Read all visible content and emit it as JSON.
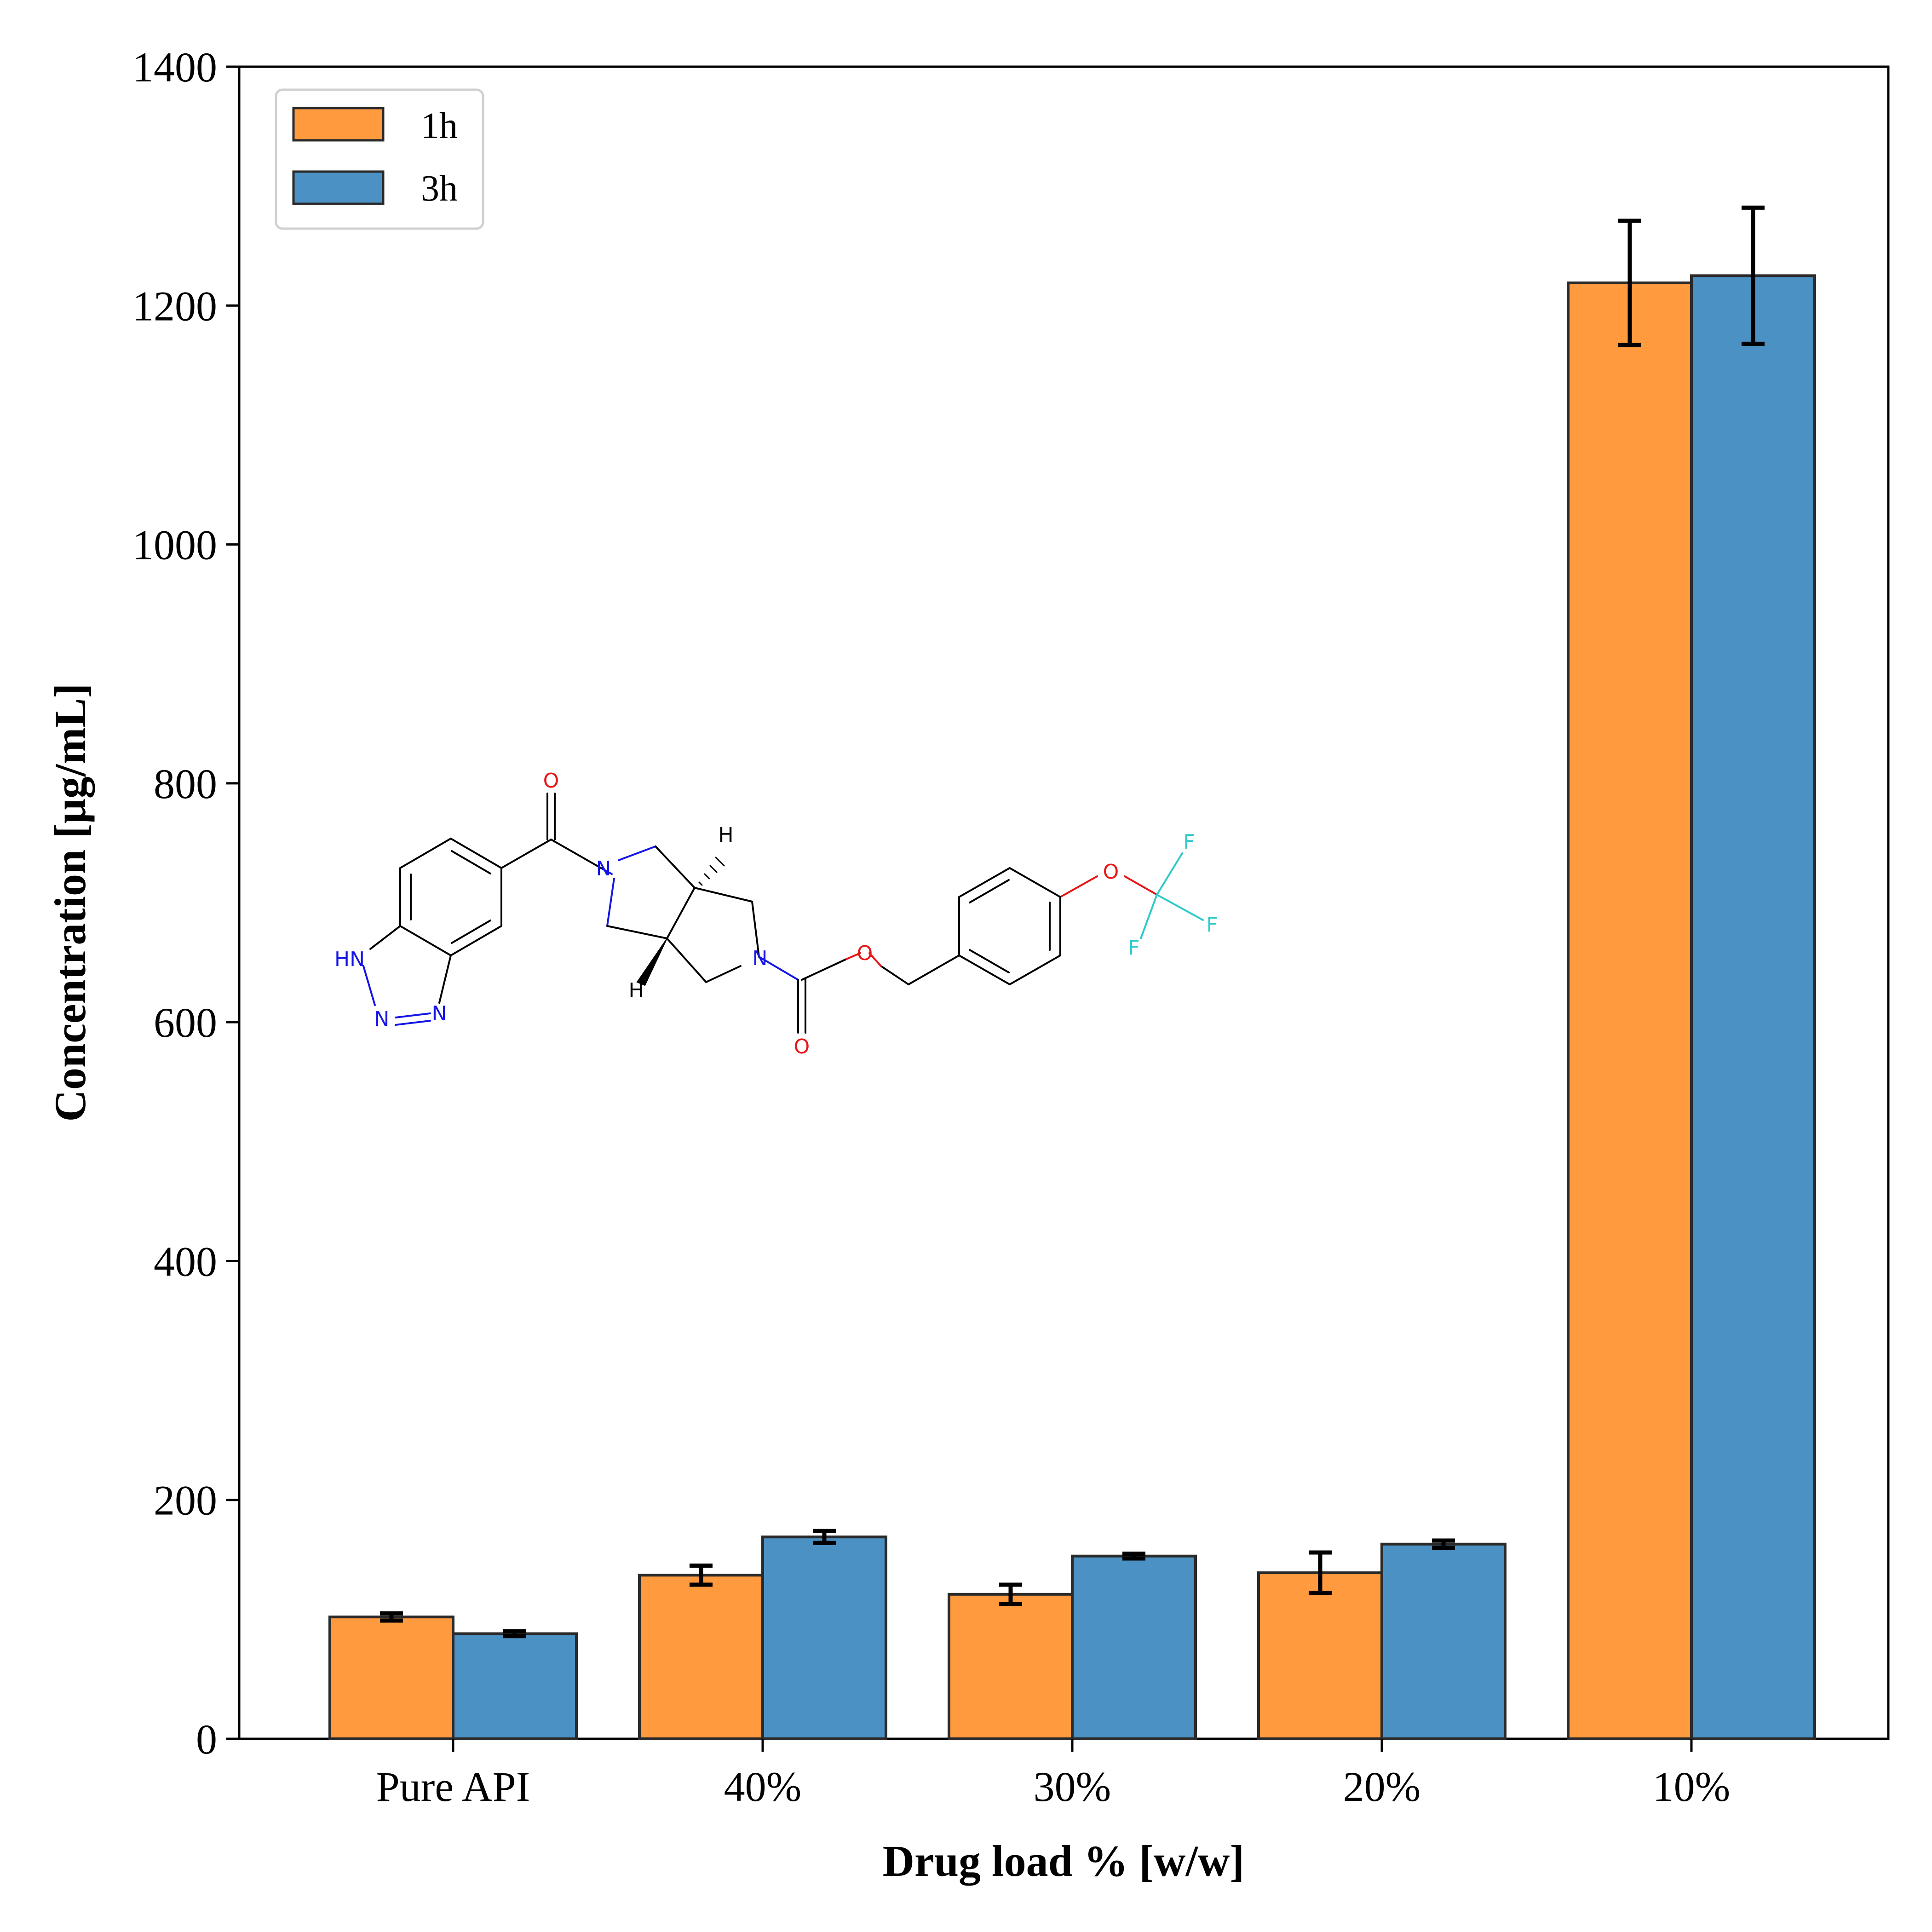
{
  "colors": {
    "series_1h": "#FF9A3F",
    "series_3h": "#4C91C3",
    "bar_edge": "#2a2a2a",
    "error_bar": "#000000",
    "nitrogen": "#1515E6",
    "oxygen": "#E61515",
    "fluorine": "#2ECACA"
  },
  "chart_data": {
    "type": "bar",
    "title": "",
    "xlabel": "Drug load % [w/w]",
    "ylabel": "Concentration [μg/mL]",
    "categories": [
      "Pure API",
      "40%",
      "30%",
      "20%",
      "10%"
    ],
    "ylim": [
      0,
      1400
    ],
    "yticks": [
      "0",
      "200",
      "400",
      "600",
      "800",
      "1000",
      "1200",
      "1400"
    ],
    "grid": false,
    "legend_position": "top-left",
    "series": [
      {
        "name": "1h",
        "values": [
          102,
          137,
          121,
          139,
          1219
        ],
        "errors": [
          3,
          8,
          8,
          17,
          52
        ]
      },
      {
        "name": "3h",
        "values": [
          88,
          169,
          153,
          163,
          1225
        ],
        "errors": [
          2,
          5,
          2,
          3,
          57
        ]
      }
    ]
  },
  "structure_labels": {
    "o_carbonyl_top": "O",
    "o_ester": "O",
    "o_carbonyl_bottom": "O",
    "o_ether": "O",
    "n_amide": "N",
    "n_carbamate": "N",
    "hn": "HN",
    "n_triazole_1": "N",
    "n_triazole_2": "N",
    "h_top": "H",
    "h_bottom": "H",
    "f_1": "F",
    "f_2": "F",
    "f_3": "F"
  }
}
